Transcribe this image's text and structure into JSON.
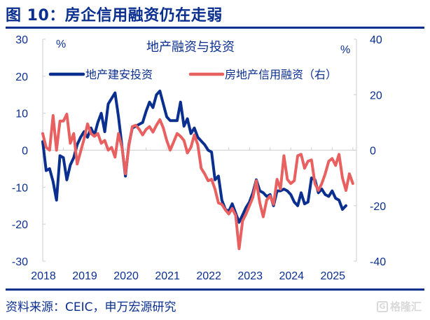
{
  "figure": {
    "title": "图 10：房企信用融资仍在走弱",
    "source": "资料来源：CEIC，申万宏源研究",
    "watermark": "格隆汇",
    "watermark_logo": "G",
    "accent_color": "#0b2f8f"
  },
  "chart_data": {
    "type": "line",
    "title": "地产融资与投资",
    "left_unit": "%",
    "right_unit": "%",
    "x_start": "2018-01",
    "x_frequency": "monthly",
    "x_ticks": [
      "2018",
      "2019",
      "2020",
      "2021",
      "2022",
      "2023",
      "2024",
      "2025"
    ],
    "left_axis": {
      "ylim": [
        -30,
        30
      ],
      "ticks": [
        "30",
        "20",
        "10",
        "0",
        "-10",
        "-20",
        "-30"
      ]
    },
    "right_axis": {
      "ylim": [
        -40,
        40
      ],
      "ticks": [
        "40",
        "20",
        "0",
        "-20",
        "-40"
      ]
    },
    "legend_position": "top",
    "series": [
      {
        "name": "地产建安投资",
        "axis": "left",
        "color": "#0b2f8f",
        "values": [
          2.3,
          -5.5,
          -5.0,
          -8.5,
          -13.5,
          -1.5,
          -2.0,
          -8.0,
          -4.0,
          -2.0,
          1.5,
          3.5,
          5.0,
          3.5,
          6.0,
          4.0,
          7.5,
          10.0,
          5.0,
          12.5,
          14.0,
          15.5,
          9.0,
          1.0,
          -7.0,
          1.5,
          6.0,
          6.5,
          7.0,
          7.5,
          10.5,
          13.0,
          11.5,
          15.0,
          16.0,
          12.5,
          9.0,
          8.0,
          8.0,
          8.0,
          13.0,
          6.5,
          8.5,
          4.5,
          6.0,
          3.5,
          2.5,
          1.5,
          0.0,
          -0.5,
          -8.0,
          -7.0,
          -13.5,
          -16.0,
          -16.5,
          -14.5,
          -17.0,
          -19.5,
          -17.5,
          -15.5,
          -14.0,
          -11.5,
          -8.0,
          -11.0,
          -11.5,
          -12.5,
          -12.0,
          -15.0,
          -11.0,
          -11.0,
          -10.5,
          -11.0,
          -12.0,
          -14.0,
          -15.0,
          -11.5,
          -14.5,
          -14.0,
          -7.5,
          -8.0,
          -11.5,
          -10.5,
          -12.0,
          -12.5,
          -11.0,
          -13.0,
          -13.5,
          -16.0,
          -15.0
        ]
      },
      {
        "name": "房地产信用融资（右）",
        "axis": "right",
        "color": "#e8605f",
        "values": [
          6.0,
          1.0,
          0.0,
          12.5,
          0.0,
          10.5,
          10.5,
          13.0,
          2.5,
          6.0,
          -5.0,
          -0.5,
          4.0,
          9.5,
          6.0,
          5.0,
          6.0,
          2.5,
          3.5,
          0.0,
          1.0,
          -2.5,
          6.0,
          1.0,
          -8.5,
          1.5,
          8.5,
          9.0,
          7.5,
          5.5,
          7.5,
          8.5,
          6.5,
          9.0,
          11.0,
          8.0,
          3.5,
          0.0,
          3.0,
          6.0,
          5.0,
          3.5,
          -1.0,
          1.0,
          5.5,
          2.0,
          -6.5,
          -8.5,
          -11.0,
          -10.5,
          -14.0,
          -19.0,
          -19.5,
          -21.5,
          -23.0,
          -21.0,
          -23.5,
          -35.5,
          -25.5,
          -23.0,
          -20.0,
          -17.0,
          -11.0,
          -19.0,
          -24.0,
          -18.0,
          -16.5,
          -19.5,
          -10.5,
          -14.0,
          -2.0,
          -10.5,
          -12.0,
          -11.0,
          -2.0,
          -1.5,
          -6.5,
          -4.0,
          -3.5,
          -12.0,
          -14.5,
          -12.0,
          -8.5,
          -4.0,
          -3.0,
          -5.5,
          -1.5,
          -10.0,
          -14.5,
          -8.5,
          -12.0
        ]
      }
    ]
  }
}
